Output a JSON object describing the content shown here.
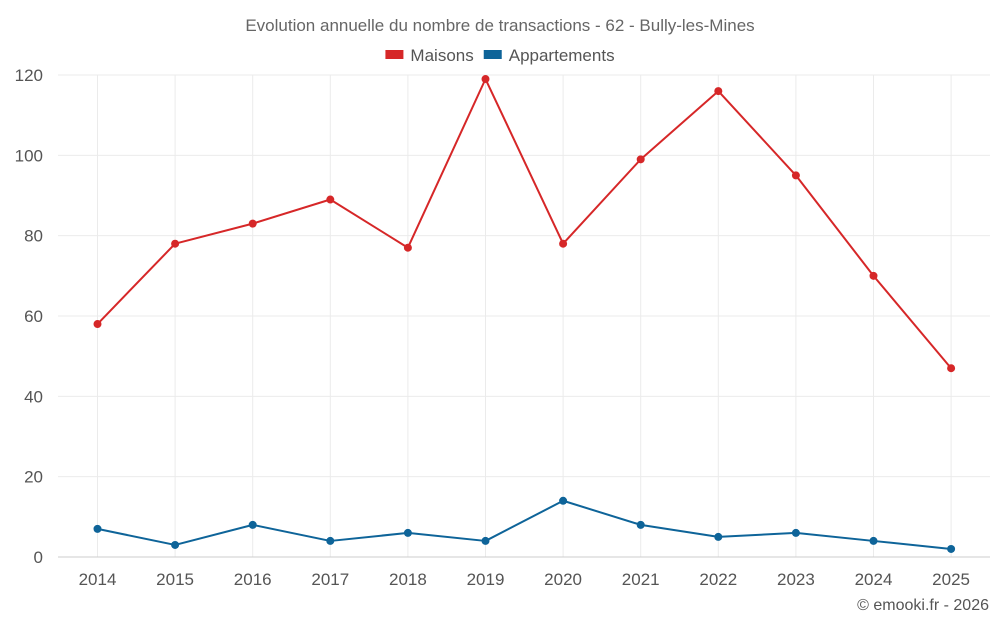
{
  "chart_data": {
    "type": "line",
    "title": "Evolution annuelle du nombre de transactions - 62 - Bully-les-Mines",
    "categories": [
      "2014",
      "2015",
      "2016",
      "2017",
      "2018",
      "2019",
      "2020",
      "2021",
      "2022",
      "2023",
      "2024",
      "2025"
    ],
    "series": [
      {
        "name": "Maisons",
        "color": "#d62728",
        "values": [
          58,
          78,
          83,
          89,
          77,
          119,
          78,
          99,
          116,
          95,
          70,
          47
        ]
      },
      {
        "name": "Appartements",
        "color": "#0e6499",
        "values": [
          7,
          3,
          8,
          4,
          6,
          4,
          14,
          8,
          5,
          6,
          4,
          2
        ]
      }
    ],
    "ylim": [
      0,
      120
    ],
    "yticks": [
      0,
      20,
      40,
      60,
      80,
      100,
      120
    ],
    "grid": true,
    "legend": "top-center",
    "xlabel": "",
    "ylabel": ""
  },
  "credit": "© emooki.fr - 2026"
}
